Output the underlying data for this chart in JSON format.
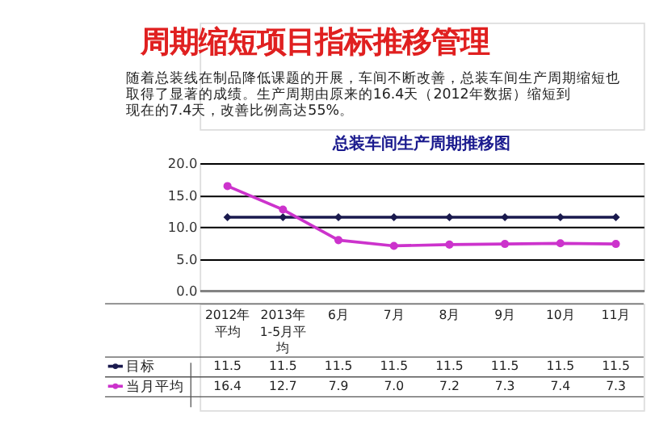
{
  "chart_data": {
    "type": "line",
    "title": "周期缩短项目指标推移管理",
    "annotations": [
      "随着总装线在制品降低课题的开展，车间不断改善，总装车间生产周期缩短也取得了显著的成绩。生产周期由原来的16.4天（2012年数据）缩短到现在的7.4天，改善比例高达55%。"
    ],
    "subtitle": "总装车间生产周期推移图",
    "categories": [
      "2012年平均",
      "2013年1-5月平均",
      "6月",
      "7月",
      "8月",
      "9月",
      "10月",
      "11月"
    ],
    "series": [
      {
        "name": "目标",
        "color": "#1a1a4e",
        "marker": "diamond",
        "values": [
          11.5,
          11.5,
          11.5,
          11.5,
          11.5,
          11.5,
          11.5,
          11.5
        ],
        "value_labels": [
          "11.5",
          "11.5",
          "11.5",
          "11.5",
          "11.5",
          "11.5",
          "11.5",
          "11.5"
        ]
      },
      {
        "name": "当月平均",
        "color": "#cc33cc",
        "marker": "circle",
        "values": [
          16.4,
          12.7,
          7.9,
          7.0,
          7.2,
          7.3,
          7.4,
          7.3
        ],
        "value_labels": [
          "16.4",
          "12.7",
          "7.9",
          "7.0",
          "7.2",
          "7.3",
          "7.4",
          "7.3"
        ]
      }
    ],
    "ylim": [
      0,
      20
    ],
    "yticks": [
      {
        "value": 0,
        "label": "0.0"
      },
      {
        "value": 5,
        "label": "5.0"
      },
      {
        "value": 10,
        "label": "10.0"
      },
      {
        "value": 15,
        "label": "15.0"
      },
      {
        "value": 20,
        "label": "20.0"
      }
    ],
    "grid": "y",
    "legend": "bottom",
    "tick_labels": "y",
    "line_style": "solid"
  }
}
